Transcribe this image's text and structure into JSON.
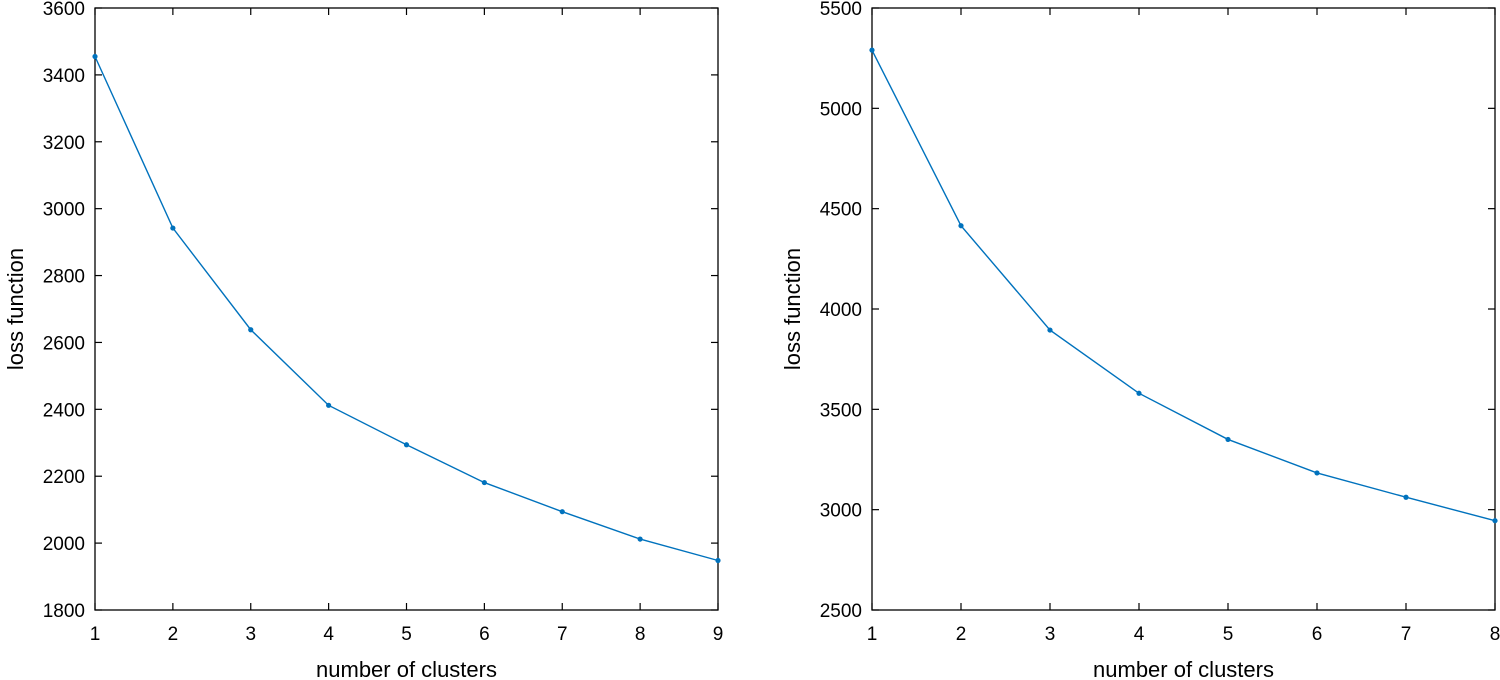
{
  "colors": {
    "series": "#0072BD",
    "axes": "#000000",
    "background": "#ffffff"
  },
  "chart_data": [
    {
      "type": "line",
      "title": "",
      "xlabel": "number of clusters",
      "ylabel": "loss function",
      "xlim": [
        1,
        9
      ],
      "ylim": [
        1800,
        3600
      ],
      "xticks": [
        1,
        2,
        3,
        4,
        5,
        6,
        7,
        8,
        9
      ],
      "yticks": [
        1800,
        2000,
        2200,
        2400,
        2600,
        2800,
        3000,
        3200,
        3400,
        3600
      ],
      "grid": false,
      "marker": "dot",
      "series": [
        {
          "x": [
            1,
            2,
            3,
            4,
            5,
            6,
            7,
            8,
            9
          ],
          "values": [
            3455,
            2942,
            2638,
            2412,
            2294,
            2181,
            2094,
            2012,
            1948
          ]
        }
      ]
    },
    {
      "type": "line",
      "title": "",
      "xlabel": "number of clusters",
      "ylabel": "loss function",
      "xlim": [
        1,
        8
      ],
      "ylim": [
        2500,
        5500
      ],
      "xticks": [
        1,
        2,
        3,
        4,
        5,
        6,
        7,
        8
      ],
      "yticks": [
        2500,
        3000,
        3500,
        4000,
        4500,
        5000,
        5500
      ],
      "grid": false,
      "marker": "dot",
      "series": [
        {
          "x": [
            1,
            2,
            3,
            4,
            5,
            6,
            7,
            8
          ],
          "values": [
            5290,
            4415,
            3895,
            3580,
            3350,
            3183,
            3062,
            2945
          ]
        }
      ]
    }
  ]
}
